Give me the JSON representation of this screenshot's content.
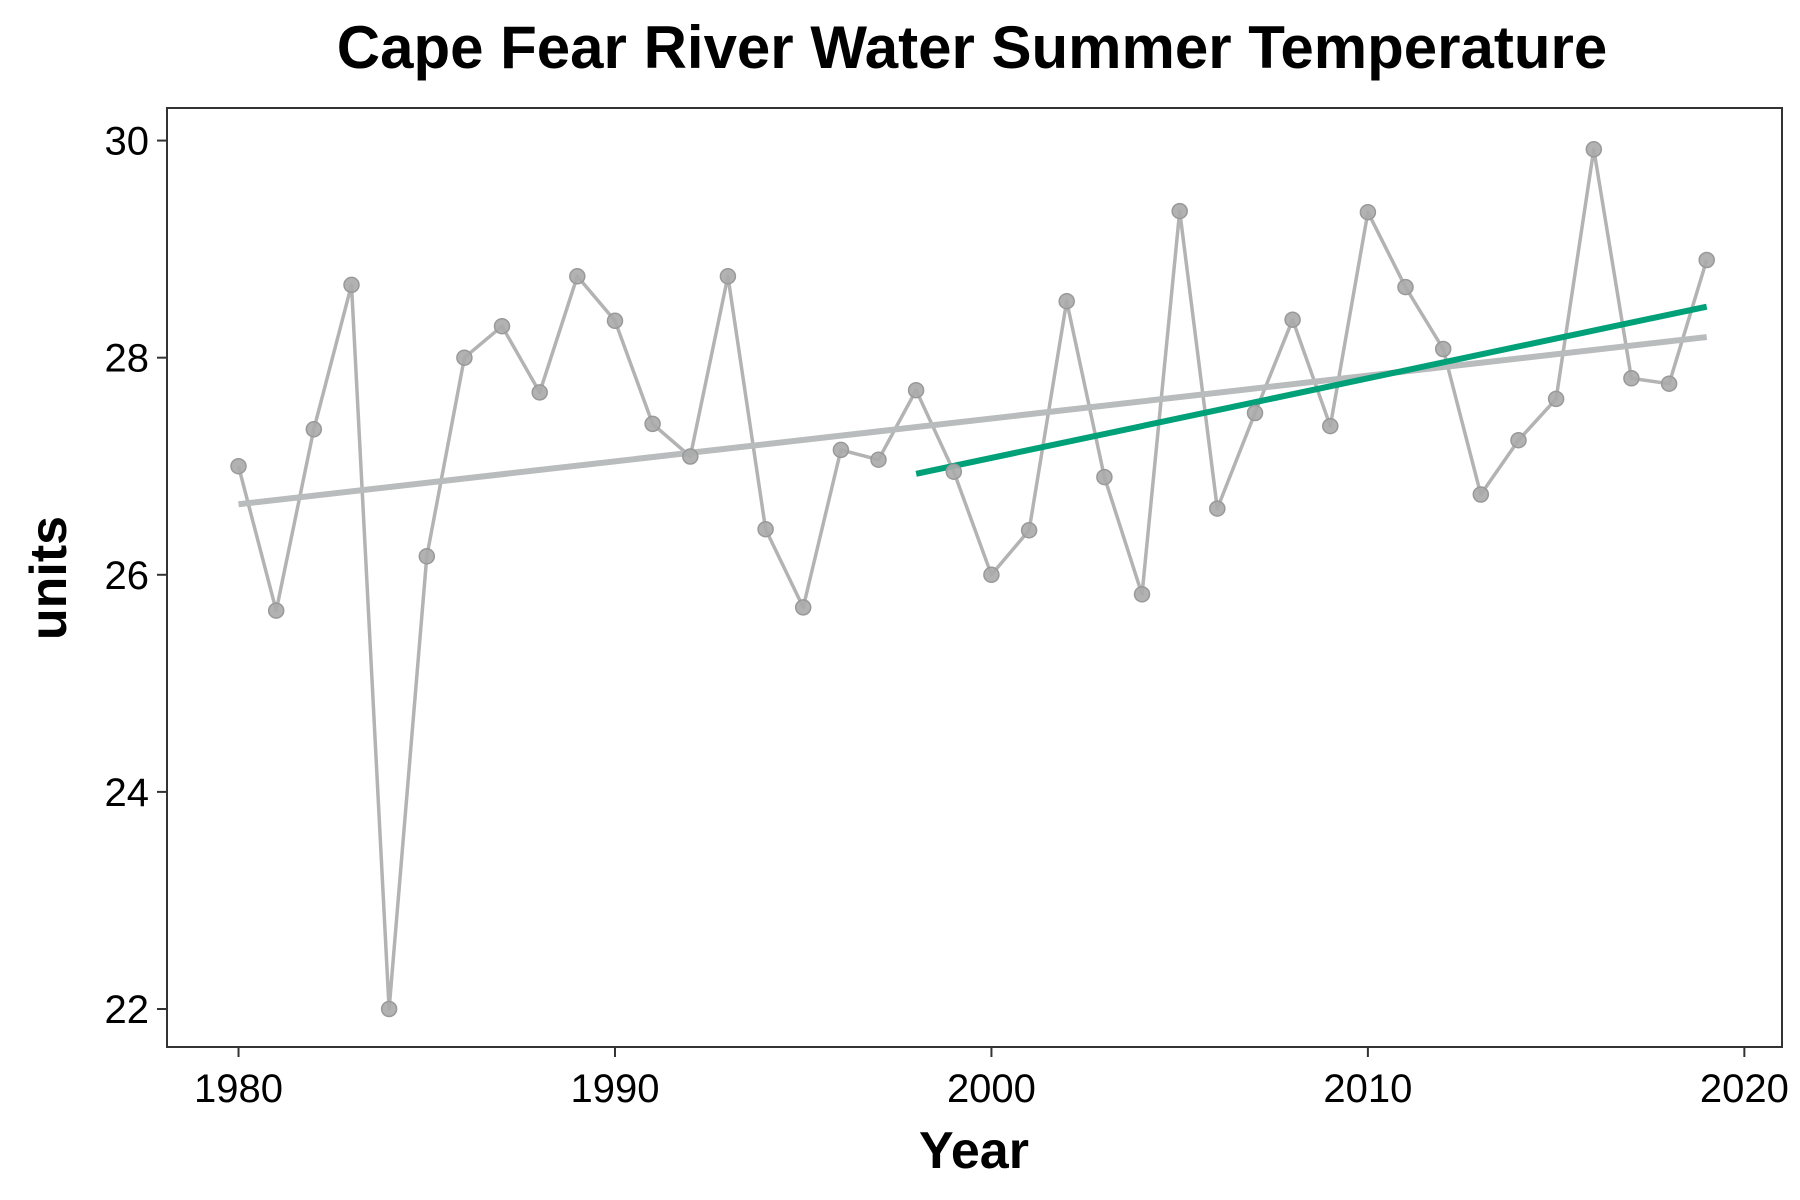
{
  "chart_data": {
    "type": "line",
    "title": "Cape Fear River Water Summer Temperature",
    "xlabel": "Year",
    "ylabel": "units",
    "xlim": [
      1978.1,
      2021.0
    ],
    "ylim": [
      21.65,
      30.3
    ],
    "xticks": [
      1980,
      1990,
      2000,
      2010,
      2020
    ],
    "yticks": [
      22,
      24,
      26,
      28,
      30
    ],
    "grid": false,
    "series": [
      {
        "x": [
          1980,
          1981,
          1982,
          1983,
          1984,
          1985,
          1986,
          1987,
          1988,
          1989,
          1990,
          1991,
          1992,
          1993,
          1994,
          1995,
          1996,
          1997,
          1998,
          1999,
          2000,
          2001,
          2002,
          2003,
          2004,
          2005,
          2006,
          2007,
          2008,
          2009,
          2010,
          2011,
          2012,
          2013,
          2014,
          2015,
          2016,
          2017,
          2018,
          2019
        ],
        "values": [
          27.0,
          25.67,
          27.34,
          28.67,
          22.0,
          26.17,
          28.0,
          28.29,
          27.68,
          28.75,
          28.34,
          27.39,
          27.09,
          28.75,
          26.42,
          25.7,
          27.15,
          27.06,
          27.7,
          26.95,
          26.0,
          26.41,
          28.52,
          26.9,
          25.82,
          29.35,
          26.61,
          27.49,
          28.35,
          27.37,
          29.34,
          28.65,
          28.08,
          26.74,
          27.24,
          27.62,
          29.92,
          27.81,
          27.76,
          28.9
        ],
        "color": "#aaaaaa"
      }
    ],
    "trend_lines": [
      {
        "x": [
          1980,
          2019
        ],
        "y": [
          26.65,
          28.19
        ],
        "color": "#b9bcbc"
      },
      {
        "x": [
          1998,
          2019
        ],
        "y": [
          26.93,
          28.47
        ],
        "color": "#00a078"
      }
    ]
  }
}
